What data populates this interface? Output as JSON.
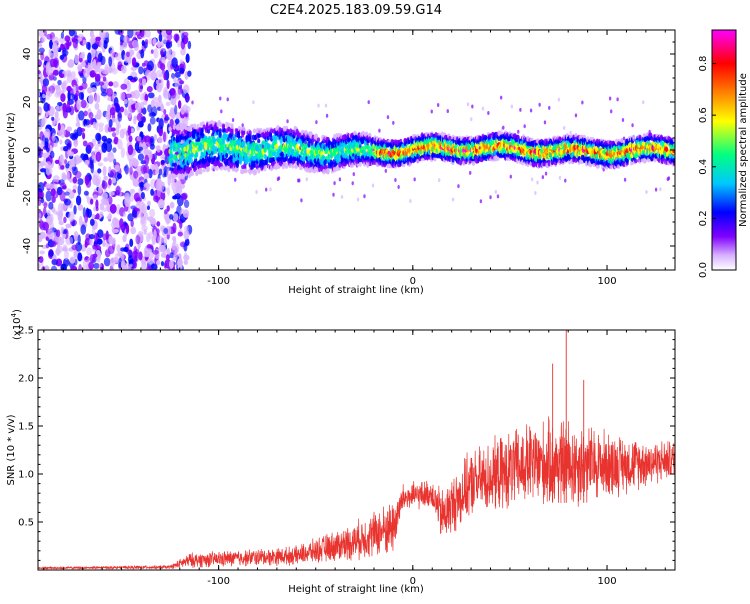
{
  "title": "C2E4.2025.183.09.59.G14",
  "chart_data": [
    {
      "type": "heatmap",
      "xlabel": "Height of straight line (km)",
      "ylabel": "Frequency (Hz)",
      "xlim": [
        -193,
        135
      ],
      "ylim": [
        -50,
        50
      ],
      "x_ticks": [
        -100,
        0,
        100
      ],
      "y_ticks": [
        -40,
        -20,
        0,
        20,
        40
      ],
      "colorbar": {
        "label": "Normalized spectral amplitude",
        "range": [
          0.0,
          0.93
        ],
        "ticks": [
          "0.0",
          "0.2",
          "0.4",
          "0.6",
          "0.8"
        ],
        "colors": [
          "#ffffff",
          "#d9b3ff",
          "#7f00ff",
          "#0000ff",
          "#00c8ff",
          "#00ff80",
          "#ffff00",
          "#ff8000",
          "#ff0000",
          "#ff00ff"
        ]
      },
      "description_values": {
        "noise_region_x": [
          -193,
          -125
        ],
        "ridge_center_freq": 0,
        "ridge_halfwidth_x": [
          [
            -125,
            6
          ],
          [
            -20,
            3
          ],
          [
            135,
            3
          ]
        ],
        "ridge_peak_amplitude": 0.85
      }
    },
    {
      "type": "line",
      "xlabel": "Height of straight line (km)",
      "ylabel": "SNR (10 * v/v)",
      "y_exponent_label": "(x10",
      "y_exponent_power": "4",
      "y_exponent_close": ")",
      "xlim": [
        -193,
        135
      ],
      "ylim": [
        0,
        2.5
      ],
      "x_ticks": [
        -100,
        0,
        100
      ],
      "y_ticks": [
        0.5,
        1.0,
        1.5,
        2.0,
        2.5
      ],
      "series": [
        {
          "color": "#e8332f",
          "envelope": [
            {
              "x": -193,
              "base": 0.02,
              "amp": 0.01
            },
            {
              "x": -125,
              "base": 0.03,
              "amp": 0.02
            },
            {
              "x": -115,
              "base": 0.1,
              "amp": 0.08
            },
            {
              "x": -60,
              "base": 0.15,
              "amp": 0.1
            },
            {
              "x": -30,
              "base": 0.3,
              "amp": 0.2
            },
            {
              "x": -10,
              "base": 0.45,
              "amp": 0.3
            },
            {
              "x": -5,
              "base": 0.75,
              "amp": 0.15
            },
            {
              "x": 10,
              "base": 0.8,
              "amp": 0.15
            },
            {
              "x": 15,
              "base": 0.55,
              "amp": 0.3
            },
            {
              "x": 30,
              "base": 0.9,
              "amp": 0.35
            },
            {
              "x": 60,
              "base": 1.1,
              "amp": 0.45
            },
            {
              "x": 80,
              "base": 1.1,
              "amp": 0.5
            },
            {
              "x": 110,
              "base": 1.1,
              "amp": 0.3
            },
            {
              "x": 135,
              "base": 1.15,
              "amp": 0.2
            }
          ],
          "peaks": [
            {
              "x": 72,
              "y": 2.15
            },
            {
              "x": 79,
              "y": 2.5
            },
            {
              "x": 88,
              "y": 1.98
            }
          ]
        }
      ]
    }
  ]
}
